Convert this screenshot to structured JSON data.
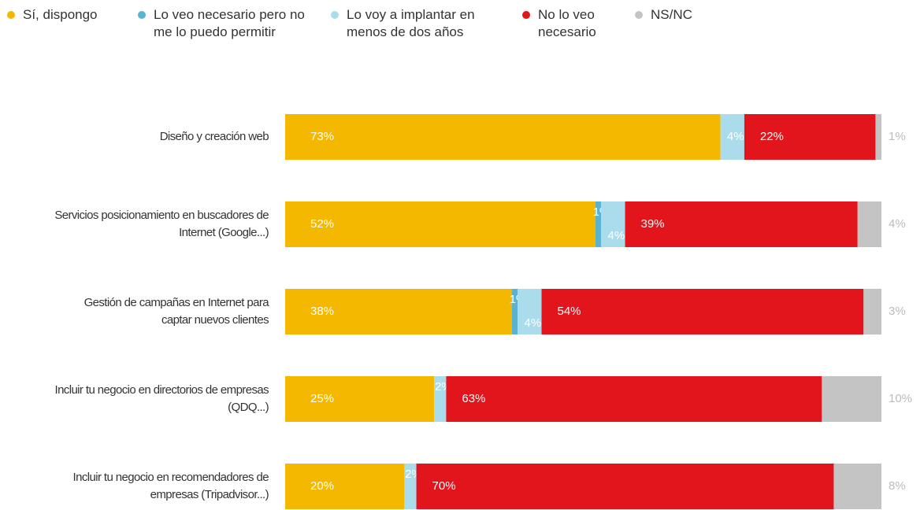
{
  "chart_data": {
    "type": "stacked-bar-horizontal",
    "categories": [
      [
        "Diseño y creación web"
      ],
      [
        "Servicios posicionamiento en buscadores de",
        "Internet (Google...)"
      ],
      [
        "Gestión de campañas en Internet para",
        "captar nuevos clientes"
      ],
      [
        "Incluir tu negocio en directorios de empresas",
        "(QDQ...)"
      ],
      [
        "Incluir tu negocio en recomendadores de",
        "empresas (Tripadvisor...)"
      ]
    ],
    "series": [
      {
        "name": "Sí, dispongo",
        "color": "#f5b800",
        "values": [
          73,
          52,
          38,
          25,
          20
        ],
        "value_labels": [
          "73%",
          "52%",
          "38%",
          "25%",
          "20%"
        ]
      },
      {
        "name": "Lo veo necesario pero no me lo puedo permitir",
        "color": "#5ab4d0",
        "values": [
          0,
          1,
          1,
          0,
          0
        ],
        "value_labels": [
          null,
          "1%",
          "1%",
          null,
          null
        ]
      },
      {
        "name": "Lo voy a implantar en menos de dos años",
        "color": "#aadcec",
        "values": [
          4,
          4,
          4,
          2,
          2
        ],
        "value_labels": [
          "4%",
          "4%",
          "4%",
          "2%",
          "2%"
        ]
      },
      {
        "name": "No lo veo necesario",
        "color": "#e2141c",
        "values": [
          22,
          39,
          54,
          63,
          70
        ],
        "value_labels": [
          "22%",
          "39%",
          "54%",
          "63%",
          "70%"
        ]
      },
      {
        "name": "NS/NC",
        "color": "#c4c4c4",
        "values": [
          1,
          4,
          3,
          10,
          8
        ],
        "value_labels": [
          "1%",
          "4%",
          "3%",
          "10%",
          "8%"
        ]
      }
    ],
    "xlim": [
      0,
      100
    ],
    "legend": "top"
  }
}
